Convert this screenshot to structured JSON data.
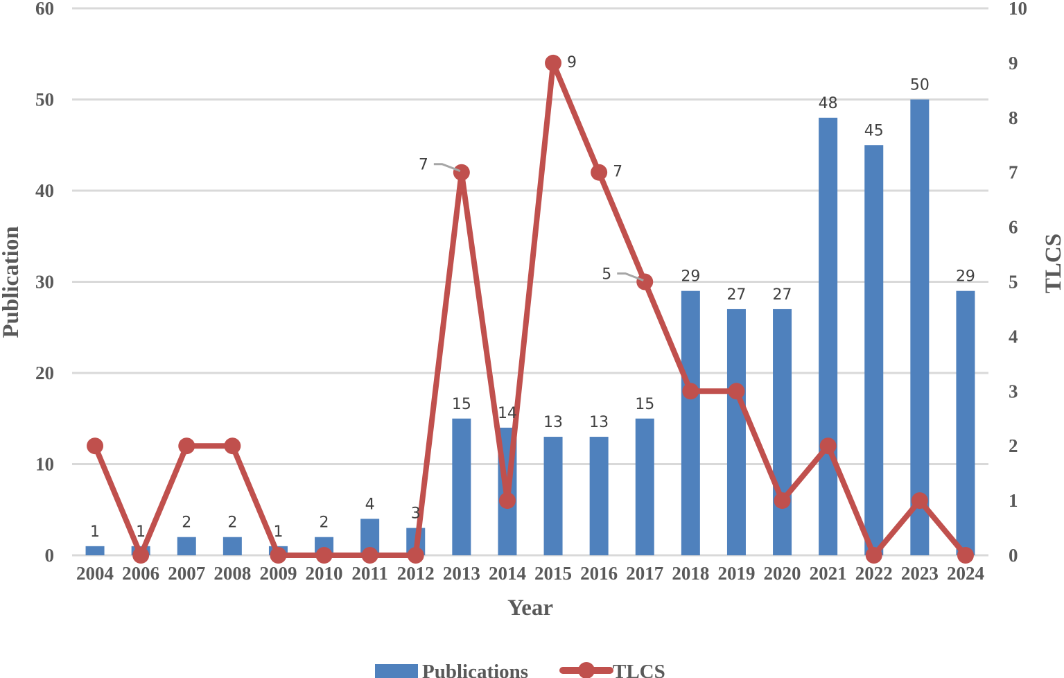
{
  "chart_data": {
    "type": "bar+line",
    "title": "",
    "categories": [
      "2004",
      "2006",
      "2007",
      "2008",
      "2009",
      "2010",
      "2011",
      "2012",
      "2013",
      "2014",
      "2015",
      "2016",
      "2017",
      "2018",
      "2019",
      "2020",
      "2021",
      "2022",
      "2023",
      "2024"
    ],
    "series": [
      {
        "name": "Publications",
        "type": "bar",
        "axis": "left",
        "color": "#4f81bd",
        "values": [
          1,
          1,
          2,
          2,
          1,
          2,
          4,
          3,
          15,
          14,
          13,
          13,
          15,
          29,
          27,
          27,
          48,
          45,
          50,
          29
        ]
      },
      {
        "name": "TLCS",
        "type": "line",
        "axis": "right",
        "color": "#c0504d",
        "values": [
          2,
          0,
          2,
          2,
          0,
          0,
          0,
          0,
          7,
          1,
          9,
          7,
          5,
          3,
          3,
          1,
          2,
          0,
          1,
          0
        ],
        "labeled_points": {
          "2013": 7,
          "2015": 9,
          "2016": 7,
          "2017": 5
        }
      }
    ],
    "xlabel": "Year",
    "ylabel": "Publication",
    "y2label": "TLCS",
    "ylim": [
      0,
      60
    ],
    "y2lim": [
      0,
      10
    ],
    "yticks": [
      0,
      10,
      20,
      30,
      40,
      50,
      60
    ],
    "y2ticks": [
      0,
      1,
      2,
      3,
      4,
      5,
      6,
      7,
      8,
      9,
      10
    ],
    "grid": true,
    "legend_position": "bottom"
  },
  "legend": {
    "publications": "Publications",
    "tlcs": "TLCS"
  }
}
